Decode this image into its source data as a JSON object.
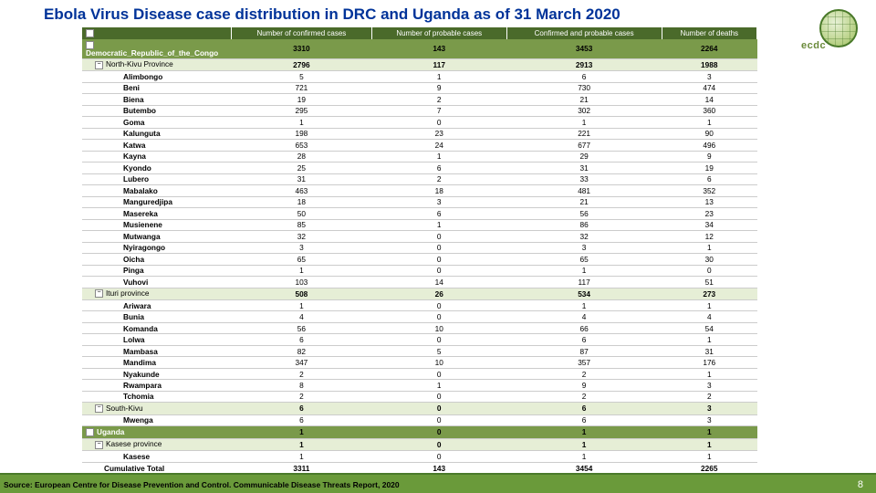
{
  "title": "Ebola Virus Disease case distribution in DRC and Uganda as of 31 March 2020",
  "logo_text": "ecdc",
  "source": "Source: European Centre for Disease Prevention and Control. Communicable Disease Threats Report, 2020",
  "page_number": "8",
  "columns": [
    "",
    "Number of confirmed cases",
    "Number of probable cases",
    "Confirmed and probable cases",
    "Number of deaths"
  ],
  "rows": [
    {
      "l": 0,
      "label": "Democratic_Republic_of_the_Congo",
      "v": [
        "3310",
        "143",
        "3453",
        "2264"
      ]
    },
    {
      "l": 1,
      "label": "North-Kivu Province",
      "v": [
        "2796",
        "117",
        "2913",
        "1988"
      ]
    },
    {
      "l": 2,
      "label": "Alimbongo",
      "v": [
        "5",
        "1",
        "6",
        "3"
      ]
    },
    {
      "l": 2,
      "label": "Beni",
      "v": [
        "721",
        "9",
        "730",
        "474"
      ]
    },
    {
      "l": 2,
      "label": "Biena",
      "v": [
        "19",
        "2",
        "21",
        "14"
      ]
    },
    {
      "l": 2,
      "label": "Butembo",
      "v": [
        "295",
        "7",
        "302",
        "360"
      ]
    },
    {
      "l": 2,
      "label": "Goma",
      "v": [
        "1",
        "0",
        "1",
        "1"
      ]
    },
    {
      "l": 2,
      "label": "Kalunguta",
      "v": [
        "198",
        "23",
        "221",
        "90"
      ]
    },
    {
      "l": 2,
      "label": "Katwa",
      "v": [
        "653",
        "24",
        "677",
        "496"
      ]
    },
    {
      "l": 2,
      "label": "Kayna",
      "v": [
        "28",
        "1",
        "29",
        "9"
      ]
    },
    {
      "l": 2,
      "label": "Kyondo",
      "v": [
        "25",
        "6",
        "31",
        "19"
      ]
    },
    {
      "l": 2,
      "label": "Lubero",
      "v": [
        "31",
        "2",
        "33",
        "6"
      ]
    },
    {
      "l": 2,
      "label": "Mabalako",
      "v": [
        "463",
        "18",
        "481",
        "352"
      ]
    },
    {
      "l": 2,
      "label": "Manguredjipa",
      "v": [
        "18",
        "3",
        "21",
        "13"
      ]
    },
    {
      "l": 2,
      "label": "Masereka",
      "v": [
        "50",
        "6",
        "56",
        "23"
      ]
    },
    {
      "l": 2,
      "label": "Musienene",
      "v": [
        "85",
        "1",
        "86",
        "34"
      ]
    },
    {
      "l": 2,
      "label": "Mutwanga",
      "v": [
        "32",
        "0",
        "32",
        "12"
      ]
    },
    {
      "l": 2,
      "label": "Nyiragongo",
      "v": [
        "3",
        "0",
        "3",
        "1"
      ]
    },
    {
      "l": 2,
      "label": "Oicha",
      "v": [
        "65",
        "0",
        "65",
        "30"
      ]
    },
    {
      "l": 2,
      "label": "Pinga",
      "v": [
        "1",
        "0",
        "1",
        "0"
      ]
    },
    {
      "l": 2,
      "label": "Vuhovi",
      "v": [
        "103",
        "14",
        "117",
        "51"
      ]
    },
    {
      "l": 1,
      "label": "Ituri province",
      "v": [
        "508",
        "26",
        "534",
        "273"
      ]
    },
    {
      "l": 2,
      "label": "Ariwara",
      "v": [
        "1",
        "0",
        "1",
        "1"
      ]
    },
    {
      "l": 2,
      "label": "Bunia",
      "v": [
        "4",
        "0",
        "4",
        "4"
      ]
    },
    {
      "l": 2,
      "label": "Komanda",
      "v": [
        "56",
        "10",
        "66",
        "54"
      ]
    },
    {
      "l": 2,
      "label": "Lolwa",
      "v": [
        "6",
        "0",
        "6",
        "1"
      ]
    },
    {
      "l": 2,
      "label": "Mambasa",
      "v": [
        "82",
        "5",
        "87",
        "31"
      ]
    },
    {
      "l": 2,
      "label": "Mandima",
      "v": [
        "347",
        "10",
        "357",
        "176"
      ]
    },
    {
      "l": 2,
      "label": "Nyakunde",
      "v": [
        "2",
        "0",
        "2",
        "1"
      ]
    },
    {
      "l": 2,
      "label": "Rwampara",
      "v": [
        "8",
        "1",
        "9",
        "3"
      ]
    },
    {
      "l": 2,
      "label": "Tchomia",
      "v": [
        "2",
        "0",
        "2",
        "2"
      ]
    },
    {
      "l": 1,
      "label": "South-Kivu",
      "v": [
        "6",
        "0",
        "6",
        "3"
      ]
    },
    {
      "l": 2,
      "label": "Mwenga",
      "v": [
        "6",
        "0",
        "6",
        "3"
      ]
    },
    {
      "l": 0,
      "label": "Uganda",
      "v": [
        "1",
        "0",
        "1",
        "1"
      ]
    },
    {
      "l": 1,
      "label": "Kasese province",
      "v": [
        "1",
        "0",
        "1",
        "1"
      ]
    },
    {
      "l": 2,
      "label": "Kasese",
      "v": [
        "1",
        "0",
        "1",
        "1"
      ]
    }
  ],
  "total": {
    "label": "Cumulative Total",
    "v": [
      "3311",
      "143",
      "3454",
      "2265"
    ]
  },
  "styling": {
    "title_color": "#003399",
    "header_bg": "#4a6a2a",
    "level0_bg": "#7a9a4a",
    "level1_bg": "#e6eed6",
    "footer_bg": "#6a9a3a",
    "logo_green": "#6a8a3a",
    "font_family": "Arial",
    "title_fontsize_pt": 13,
    "table_fontsize_pt": 6
  }
}
